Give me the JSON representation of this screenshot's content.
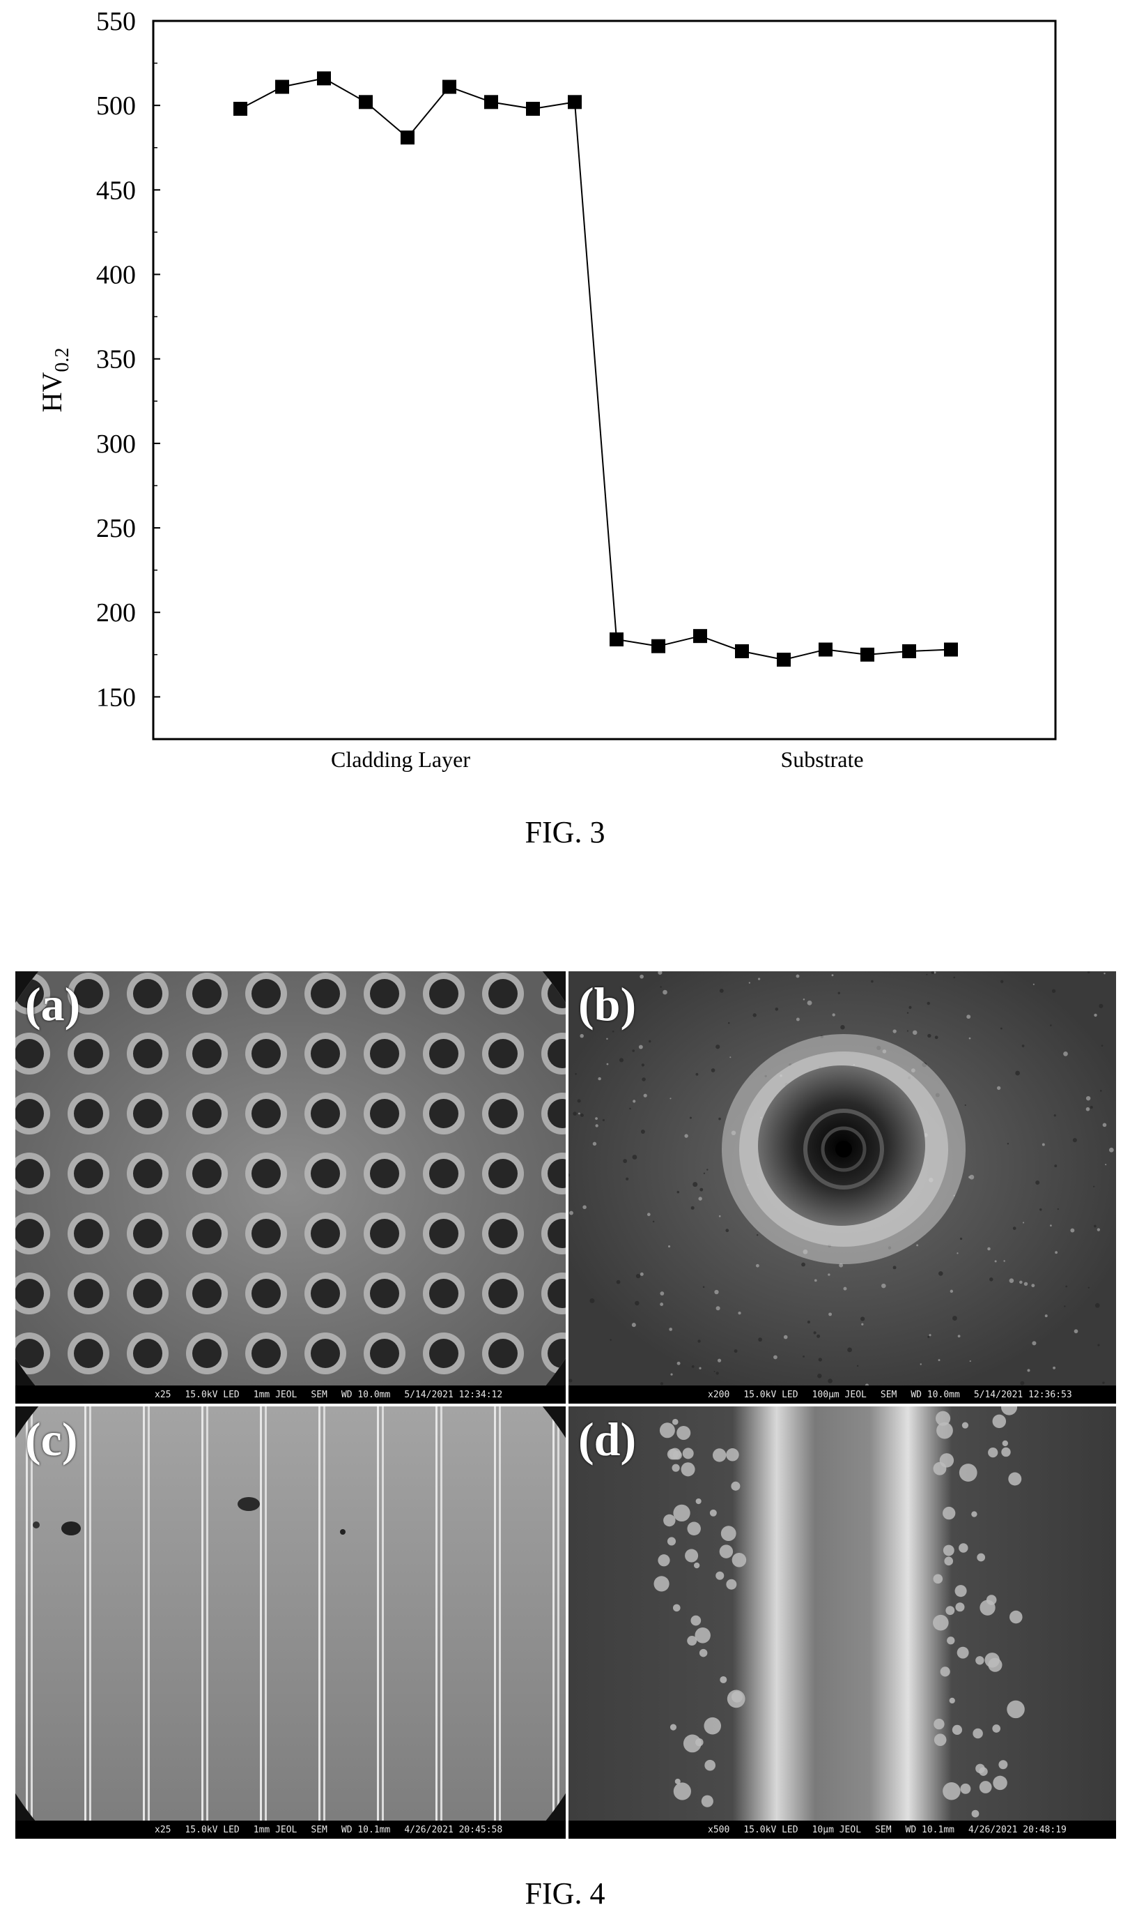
{
  "figures": {
    "fig3": {
      "caption": "FIG. 3",
      "chart_data": {
        "type": "line",
        "title": "",
        "ylabel_main": "HV",
        "ylabel_sub": "0.2",
        "xlabel": "",
        "ylim": [
          125,
          550
        ],
        "yticks": [
          150,
          200,
          250,
          300,
          350,
          400,
          450,
          500,
          550
        ],
        "x_group_labels": [
          "Cladding Layer",
          "Substrate"
        ],
        "grid": false,
        "series": [
          {
            "marker": "square",
            "x": [
              1,
              2,
              3,
              4,
              5,
              6,
              7,
              8,
              9,
              10,
              11,
              12,
              13,
              14,
              15,
              16,
              17,
              18
            ],
            "values": [
              498,
              511,
              516,
              502,
              481,
              511,
              502,
              498,
              502,
              184,
              180,
              186,
              177,
              172,
              178,
              175,
              177,
              178
            ]
          }
        ]
      }
    },
    "fig4": {
      "caption": "FIG. 4",
      "panels": [
        {
          "label": "(a)",
          "info": [
            "x25",
            "15.0kV LED",
            "1mm JEOL",
            "SEM",
            "WD 10.0mm",
            "5/14/2021 12:34:12"
          ]
        },
        {
          "label": "(b)",
          "info": [
            "x200",
            "15.0kV LED",
            "100μm JEOL",
            "SEM",
            "WD 10.0mm",
            "5/14/2021 12:36:53"
          ]
        },
        {
          "label": "(c)",
          "info": [
            "x25",
            "15.0kV LED",
            "1mm JEOL",
            "SEM",
            "WD 10.1mm",
            "4/26/2021 20:45:58"
          ]
        },
        {
          "label": "(d)",
          "info": [
            "x500",
            "15.0kV LED",
            "10μm JEOL",
            "SEM",
            "WD 10.1mm",
            "4/26/2021 20:48:19"
          ]
        }
      ]
    }
  }
}
